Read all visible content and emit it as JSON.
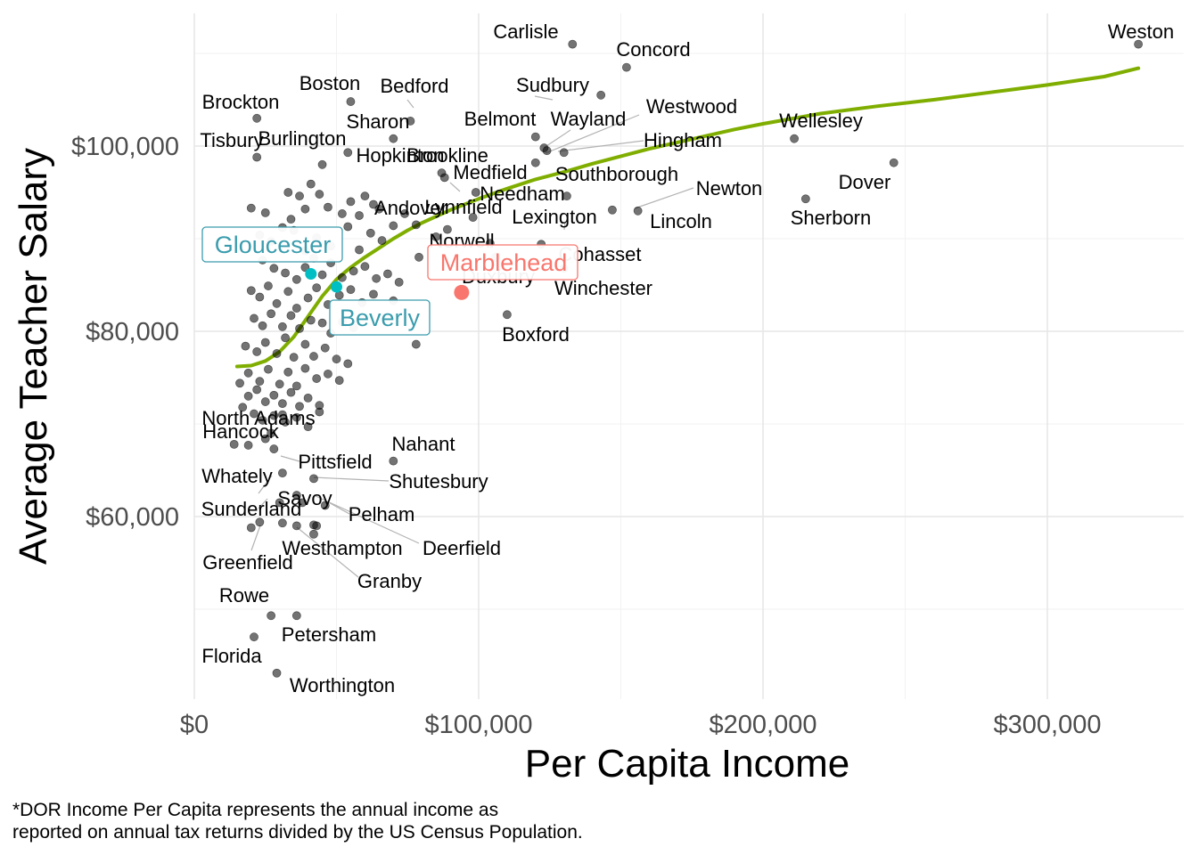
{
  "chart_data": {
    "type": "scatter",
    "xlabel": "Per Capita Income",
    "ylabel": "Average Teacher Salary",
    "xlim": [
      -4000,
      348000
    ],
    "ylim": [
      40000,
      114000
    ],
    "x_ticks": [
      0,
      100000,
      200000,
      300000
    ],
    "x_tick_labels": [
      "$0",
      "$100,000",
      "$200,000",
      "$300,000"
    ],
    "y_ticks": [
      60000,
      80000,
      100000
    ],
    "y_tick_labels": [
      "$60,000",
      "$80,000",
      "$100,000"
    ],
    "grid": true,
    "smooth_color": "#7fae00",
    "caption": [
      "*DOR Income Per Capita represents the annual income as",
      "reported on annual tax returns divided by the US Census Population."
    ],
    "labeled_points": [
      {
        "name": "Weston",
        "x": 332000,
        "y": 111000
      },
      {
        "name": "Carlisle",
        "x": 133000,
        "y": 111000
      },
      {
        "name": "Concord",
        "x": 152000,
        "y": 108500
      },
      {
        "name": "Sudbury",
        "x": 143000,
        "y": 105500
      },
      {
        "name": "Brockton",
        "x": 22000,
        "y": 103000
      },
      {
        "name": "Boston",
        "x": 55000,
        "y": 104800
      },
      {
        "name": "Bedford",
        "x": 76000,
        "y": 102700
      },
      {
        "name": "Sharon",
        "x": 70000,
        "y": 100800
      },
      {
        "name": "Belmont",
        "x": 120000,
        "y": 101000
      },
      {
        "name": "Wayland",
        "x": 123000,
        "y": 99800
      },
      {
        "name": "Westwood",
        "x": 124000,
        "y": 99500
      },
      {
        "name": "Hingham",
        "x": 130000,
        "y": 99300
      },
      {
        "name": "Wellesley",
        "x": 211000,
        "y": 100800
      },
      {
        "name": "Tisbury",
        "x": 22000,
        "y": 98800
      },
      {
        "name": "Burlington",
        "x": 45000,
        "y": 98000
      },
      {
        "name": "Hopkinton",
        "x": 54000,
        "y": 99300
      },
      {
        "name": "Brookline",
        "x": 87000,
        "y": 97100
      },
      {
        "name": "Medfield",
        "x": 88000,
        "y": 96600
      },
      {
        "name": "Southborough",
        "x": 120000,
        "y": 98200
      },
      {
        "name": "Dover",
        "x": 246000,
        "y": 98200
      },
      {
        "name": "Needham",
        "x": 99000,
        "y": 95000
      },
      {
        "name": "Newton",
        "x": 147000,
        "y": 93100
      },
      {
        "name": "Lincoln",
        "x": 156000,
        "y": 93000
      },
      {
        "name": "Sherborn",
        "x": 215000,
        "y": 94300
      },
      {
        "name": "Lexington",
        "x": 131000,
        "y": 94600
      },
      {
        "name": "Andover",
        "x": 65000,
        "y": 93200
      },
      {
        "name": "Lynnfield",
        "x": 98000,
        "y": 92300
      },
      {
        "name": "Norwell",
        "x": 104000,
        "y": 89500
      },
      {
        "name": "Cohasset",
        "x": 122000,
        "y": 89400
      },
      {
        "name": "Duxbury",
        "x": 106000,
        "y": 88000
      },
      {
        "name": "Winchester",
        "x": 130000,
        "y": 86800
      },
      {
        "name": "Boxford",
        "x": 110000,
        "y": 81800
      },
      {
        "name": "North Adams",
        "x": 31000,
        "y": 71000
      },
      {
        "name": "Hancock",
        "x": 27000,
        "y": 69000
      },
      {
        "name": "Nahant",
        "x": 70000,
        "y": 66000
      },
      {
        "name": "Pittsfield",
        "x": 28000,
        "y": 67300
      },
      {
        "name": "Shutesbury",
        "x": 42000,
        "y": 64100
      },
      {
        "name": "Whately",
        "x": 31000,
        "y": 64700
      },
      {
        "name": "Savoy",
        "x": 36000,
        "y": 62300
      },
      {
        "name": "Sunderland",
        "x": 30000,
        "y": 61500
      },
      {
        "name": "Pelham",
        "x": 46000,
        "y": 61200
      },
      {
        "name": "Deerfield",
        "x": 43000,
        "y": 59000
      },
      {
        "name": "Greenfield",
        "x": 23000,
        "y": 59400
      },
      {
        "name": "Westhampton",
        "x": 36000,
        "y": 59000
      },
      {
        "name": "Granby",
        "x": 42000,
        "y": 58100
      },
      {
        "name": "Rowe",
        "x": 27000,
        "y": 49300
      },
      {
        "name": "Petersham",
        "x": 36000,
        "y": 49300
      },
      {
        "name": "Florida",
        "x": 21000,
        "y": 47000
      },
      {
        "name": "Worthington",
        "x": 29000,
        "y": 43100
      }
    ],
    "highlighted": [
      {
        "name": "Marblehead",
        "x": 94000,
        "y": 84200,
        "color": "#f8766d"
      },
      {
        "name": "Gloucester",
        "x": 41000,
        "y": 86200,
        "color": "#00bfc4"
      },
      {
        "name": "Beverly",
        "x": 50000,
        "y": 84800,
        "color": "#00bfc4"
      }
    ],
    "highlight_label_colors": {
      "Marblehead": "#f8766d",
      "Gloucester": "#3a9cad",
      "Beverly": "#3a9cad"
    },
    "other_points": [
      [
        20000,
        93300
      ],
      [
        25000,
        92800
      ],
      [
        33000,
        95000
      ],
      [
        34000,
        92100
      ],
      [
        37000,
        94600
      ],
      [
        39000,
        93200
      ],
      [
        41000,
        95900
      ],
      [
        44000,
        94800
      ],
      [
        47000,
        93400
      ],
      [
        52000,
        92700
      ],
      [
        55000,
        94000
      ],
      [
        58000,
        92500
      ],
      [
        60000,
        94600
      ],
      [
        63000,
        93700
      ],
      [
        23000,
        90400
      ],
      [
        27000,
        89700
      ],
      [
        31000,
        91200
      ],
      [
        35000,
        90900
      ],
      [
        39000,
        88700
      ],
      [
        43000,
        90100
      ],
      [
        48000,
        89200
      ],
      [
        54000,
        91300
      ],
      [
        58000,
        88800
      ],
      [
        62000,
        90600
      ],
      [
        66000,
        89800
      ],
      [
        70000,
        91400
      ],
      [
        74000,
        92700
      ],
      [
        78000,
        91500
      ],
      [
        85000,
        90200
      ],
      [
        89000,
        91000
      ],
      [
        24000,
        87700
      ],
      [
        28000,
        86800
      ],
      [
        32000,
        86300
      ],
      [
        36000,
        85600
      ],
      [
        39000,
        86900
      ],
      [
        42000,
        87900
      ],
      [
        45000,
        86100
      ],
      [
        48000,
        87400
      ],
      [
        52000,
        85800
      ],
      [
        56000,
        86500
      ],
      [
        60000,
        87000
      ],
      [
        64000,
        85700
      ],
      [
        68000,
        86200
      ],
      [
        72000,
        85300
      ],
      [
        79000,
        88000
      ],
      [
        20000,
        84400
      ],
      [
        23000,
        83700
      ],
      [
        26000,
        84900
      ],
      [
        29000,
        83000
      ],
      [
        33000,
        84300
      ],
      [
        36000,
        82500
      ],
      [
        40000,
        83600
      ],
      [
        43000,
        84700
      ],
      [
        47000,
        82900
      ],
      [
        51000,
        83900
      ],
      [
        55000,
        84500
      ],
      [
        59000,
        83100
      ],
      [
        63000,
        84000
      ],
      [
        70000,
        83300
      ],
      [
        21000,
        81400
      ],
      [
        24000,
        80600
      ],
      [
        27000,
        81900
      ],
      [
        31000,
        80500
      ],
      [
        34000,
        81700
      ],
      [
        37000,
        80300
      ],
      [
        41000,
        81200
      ],
      [
        45000,
        80900
      ],
      [
        48000,
        79800
      ],
      [
        52000,
        81000
      ],
      [
        56000,
        80400
      ],
      [
        18000,
        78400
      ],
      [
        22000,
        77800
      ],
      [
        25000,
        78800
      ],
      [
        29000,
        77600
      ],
      [
        32000,
        79300
      ],
      [
        35000,
        77200
      ],
      [
        39000,
        78600
      ],
      [
        42000,
        77300
      ],
      [
        46000,
        78200
      ],
      [
        50000,
        77000
      ],
      [
        54000,
        76500
      ],
      [
        78000,
        78600
      ],
      [
        19000,
        75500
      ],
      [
        23000,
        74600
      ],
      [
        26000,
        75900
      ],
      [
        30000,
        74300
      ],
      [
        33000,
        75600
      ],
      [
        36000,
        74100
      ],
      [
        39000,
        76000
      ],
      [
        43000,
        74900
      ],
      [
        47000,
        75400
      ],
      [
        51000,
        74700
      ],
      [
        16000,
        74400
      ],
      [
        19000,
        73000
      ],
      [
        22000,
        73700
      ],
      [
        25000,
        72400
      ],
      [
        28000,
        73100
      ],
      [
        31000,
        72200
      ],
      [
        34000,
        73400
      ],
      [
        37000,
        71900
      ],
      [
        40000,
        72800
      ],
      [
        44000,
        72000
      ],
      [
        17000,
        71800
      ],
      [
        21000,
        71100
      ],
      [
        24000,
        70400
      ],
      [
        28000,
        70900
      ],
      [
        32000,
        70200
      ],
      [
        36000,
        70700
      ],
      [
        40000,
        69700
      ],
      [
        44000,
        71300
      ],
      [
        14000,
        67800
      ],
      [
        19000,
        67700
      ],
      [
        25000,
        68400
      ],
      [
        20000,
        58800
      ],
      [
        42000,
        59100
      ],
      [
        31000,
        59300
      ],
      [
        38000,
        61500
      ]
    ],
    "smooth": [
      [
        15000,
        76200
      ],
      [
        20000,
        76300
      ],
      [
        25000,
        76800
      ],
      [
        30000,
        77800
      ],
      [
        35000,
        79400
      ],
      [
        40000,
        81600
      ],
      [
        45000,
        83800
      ],
      [
        50000,
        85600
      ],
      [
        55000,
        86900
      ],
      [
        60000,
        88000
      ],
      [
        65000,
        89000
      ],
      [
        70000,
        90000
      ],
      [
        75000,
        90900
      ],
      [
        80000,
        91700
      ],
      [
        90000,
        93100
      ],
      [
        100000,
        94300
      ],
      [
        110000,
        95400
      ],
      [
        120000,
        96400
      ],
      [
        130000,
        97200
      ],
      [
        140000,
        98100
      ],
      [
        150000,
        98900
      ],
      [
        160000,
        99700
      ],
      [
        170000,
        100400
      ],
      [
        180000,
        101100
      ],
      [
        190000,
        101800
      ],
      [
        200000,
        102400
      ],
      [
        220000,
        103500
      ],
      [
        240000,
        104300
      ],
      [
        260000,
        105000
      ],
      [
        280000,
        105800
      ],
      [
        300000,
        106600
      ],
      [
        320000,
        107500
      ],
      [
        332000,
        108400
      ]
    ]
  }
}
